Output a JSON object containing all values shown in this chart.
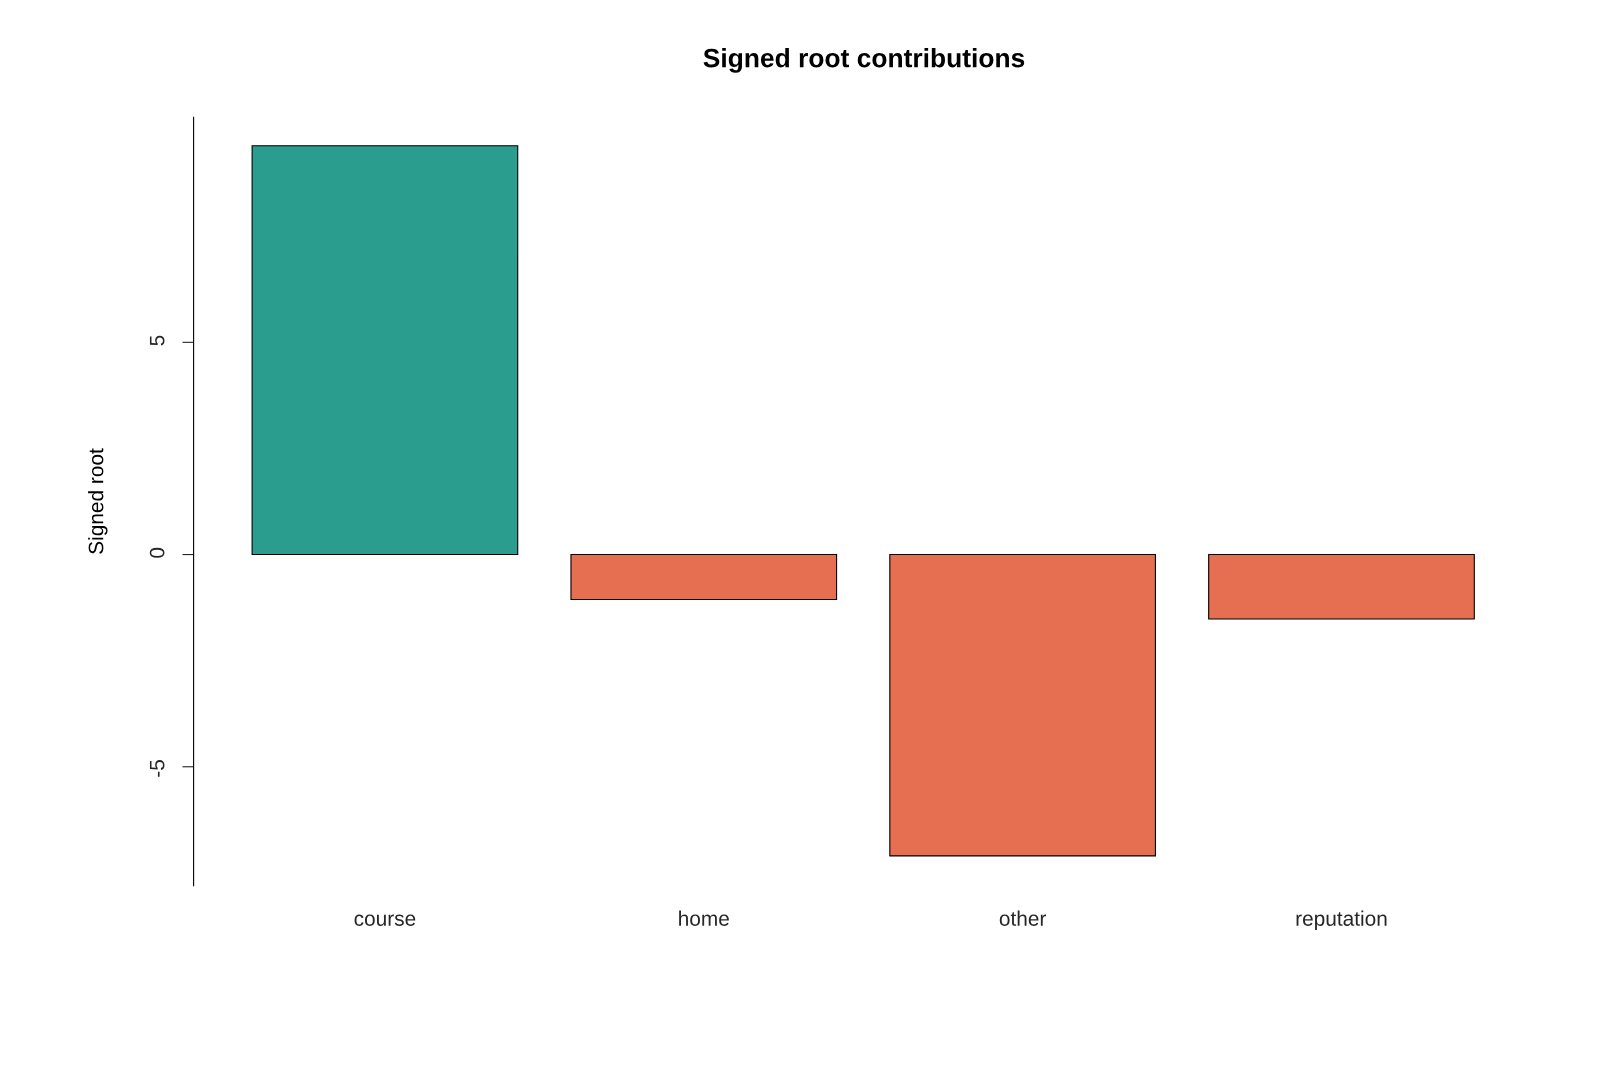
{
  "chart_data": {
    "type": "bar",
    "title": "Signed root contributions",
    "ylabel": "Signed root",
    "categories": [
      "course",
      "home",
      "other",
      "reputation"
    ],
    "values": [
      9.63,
      -1.06,
      -7.1,
      -1.52
    ],
    "colors": [
      "#2a9d8f",
      "#e76f51",
      "#e76f51",
      "#e76f51"
    ],
    "ylim": [
      -7.8,
      10.3
    ],
    "yticks": [
      {
        "value": -5,
        "label": "-5"
      },
      0,
      5
    ],
    "grid": false
  }
}
